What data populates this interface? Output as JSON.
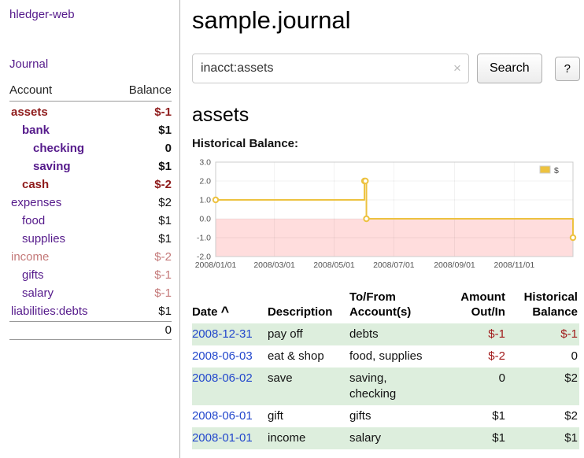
{
  "app": {
    "title": "hledger-web"
  },
  "colors": {
    "link_purple": "#551a8b",
    "date_blue": "#2247cc",
    "negative_strong": "#8e1a1a",
    "negative_soft": "#c47979",
    "row_stripe_green": "#ddeedd",
    "chart_line_gold": "#edc240",
    "chart_negative_region": "#ffdddd"
  },
  "sidebar": {
    "journal_link": "Journal",
    "table": {
      "col_account": "Account",
      "col_balance": "Balance",
      "accounts": [
        {
          "name": "assets",
          "balance": "$-1"
        },
        {
          "name": "bank",
          "balance": "$1"
        },
        {
          "name": "checking",
          "balance": "0"
        },
        {
          "name": "saving",
          "balance": "$1"
        },
        {
          "name": "cash",
          "balance": "$-2"
        },
        {
          "name": "expenses",
          "balance": "$2"
        },
        {
          "name": "food",
          "balance": "$1"
        },
        {
          "name": "supplies",
          "balance": "$1"
        },
        {
          "name": "income",
          "balance": "$-2"
        },
        {
          "name": "gifts",
          "balance": "$-1"
        },
        {
          "name": "salary",
          "balance": "$-1"
        },
        {
          "name": "liabilities:debts",
          "balance": "$1"
        }
      ],
      "total": "0"
    }
  },
  "main": {
    "title": "sample.journal",
    "search": {
      "value": "inacct:assets",
      "clear_label": "×",
      "button": "Search",
      "help": "?"
    },
    "account_heading": "assets",
    "chart_label": "Historical Balance:",
    "register": {
      "headers": {
        "date": "Date",
        "sort": "^",
        "description": "Description",
        "accounts_line1": "To/From",
        "accounts_line2": "Account(s)",
        "amount_line1": "Amount",
        "amount_line2": "Out/In",
        "balance_line1": "Historical",
        "balance_line2": "Balance"
      },
      "rows": [
        {
          "date": "2008-12-31",
          "description": "pay off",
          "accounts": "debts",
          "amount": "$-1",
          "balance": "$-1"
        },
        {
          "date": "2008-06-03",
          "description": "eat & shop",
          "accounts": "food, supplies",
          "amount": "$-2",
          "balance": "0"
        },
        {
          "date": "2008-06-02",
          "description": "save",
          "accounts": "saving, checking",
          "amount": "0",
          "balance": "$2"
        },
        {
          "date": "2008-06-01",
          "description": "gift",
          "accounts": "gifts",
          "amount": "$1",
          "balance": "$2"
        },
        {
          "date": "2008-01-01",
          "description": "income",
          "accounts": "salary",
          "amount": "$1",
          "balance": "$1"
        }
      ]
    }
  },
  "chart_data": {
    "type": "line",
    "title": "Historical Balance:",
    "xlim": [
      "2008-01-01",
      "2008-12-31"
    ],
    "ylim": [
      -2.0,
      3.0
    ],
    "y_ticks": [
      3.0,
      2.0,
      1.0,
      0.0,
      -1.0,
      -2.0
    ],
    "x_ticks": [
      "2008/01/01",
      "2008/03/01",
      "2008/05/01",
      "2008/07/01",
      "2008/09/01",
      "2008/11/01"
    ],
    "grid": true,
    "negative_region_color": "#ffdddd",
    "legend": {
      "label": "$",
      "position": "top-right"
    },
    "series": [
      {
        "name": "$",
        "color": "#edc240",
        "step": true,
        "points": [
          [
            "2008-01-01",
            1
          ],
          [
            "2008-06-01",
            2
          ],
          [
            "2008-06-02",
            2
          ],
          [
            "2008-06-03",
            0
          ],
          [
            "2008-12-31",
            -1
          ]
        ]
      }
    ]
  }
}
